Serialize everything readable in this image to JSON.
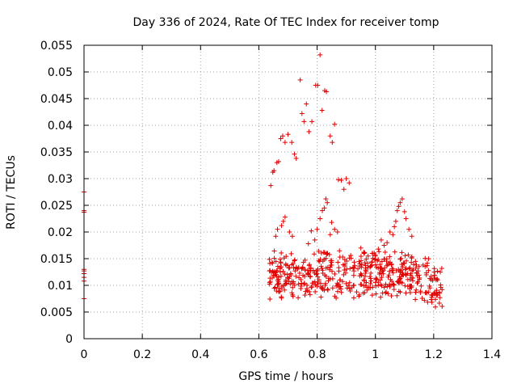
{
  "chart_data": {
    "type": "scatter",
    "title": "Day 336 of 2024, Rate Of TEC Index for receiver tomp",
    "xlabel": "GPS time / hours",
    "ylabel": "ROTI / TECUs",
    "xlim": [
      0,
      1.4
    ],
    "ylim": [
      0,
      0.055
    ],
    "x_ticks": [
      "0",
      "0.2",
      "0.4",
      "0.6",
      "0.8",
      "1",
      "1.2",
      "1.4"
    ],
    "y_ticks": [
      "0",
      "0.005",
      "0.01",
      "0.015",
      "0.02",
      "0.025",
      "0.03",
      "0.035",
      "0.04",
      "0.045",
      "0.05",
      "0.055"
    ],
    "grid": true,
    "marker": "+",
    "color": "#e00000",
    "series": [
      {
        "name": "ROTI",
        "points": [
          [
            0.0,
            0.0275
          ],
          [
            0.0,
            0.024
          ],
          [
            0.0,
            0.0237
          ],
          [
            0.0,
            0.013
          ],
          [
            0.0,
            0.0127
          ],
          [
            0.0,
            0.0122
          ],
          [
            0.0,
            0.0115
          ],
          [
            0.0,
            0.0108
          ],
          [
            0.0,
            0.0075
          ],
          [
            0.641,
            0.0287
          ],
          [
            0.648,
            0.0312
          ],
          [
            0.652,
            0.0315
          ],
          [
            0.662,
            0.033
          ],
          [
            0.668,
            0.0332
          ],
          [
            0.675,
            0.0375
          ],
          [
            0.682,
            0.038
          ],
          [
            0.69,
            0.0368
          ],
          [
            0.7,
            0.0383
          ],
          [
            0.713,
            0.0368
          ],
          [
            0.722,
            0.0346
          ],
          [
            0.728,
            0.0338
          ],
          [
            0.742,
            0.0485
          ],
          [
            0.748,
            0.0422
          ],
          [
            0.755,
            0.0407
          ],
          [
            0.763,
            0.044
          ],
          [
            0.772,
            0.0388
          ],
          [
            0.782,
            0.0407
          ],
          [
            0.795,
            0.0475
          ],
          [
            0.802,
            0.0475
          ],
          [
            0.81,
            0.0532
          ],
          [
            0.817,
            0.0428
          ],
          [
            0.826,
            0.0465
          ],
          [
            0.832,
            0.0463
          ],
          [
            0.845,
            0.038
          ],
          [
            0.852,
            0.0368
          ],
          [
            0.86,
            0.0402
          ],
          [
            0.873,
            0.0298
          ],
          [
            0.883,
            0.0297
          ],
          [
            0.892,
            0.028
          ],
          [
            0.9,
            0.03
          ],
          [
            0.91,
            0.0292
          ],
          [
            0.818,
            0.024
          ],
          [
            0.825,
            0.0245
          ],
          [
            0.83,
            0.0262
          ],
          [
            0.835,
            0.0255
          ],
          [
            0.81,
            0.0225
          ],
          [
            0.8,
            0.0205
          ],
          [
            0.85,
            0.0218
          ],
          [
            0.86,
            0.0205
          ],
          [
            0.845,
            0.0195
          ],
          [
            0.87,
            0.02
          ],
          [
            0.78,
            0.0202
          ],
          [
            0.792,
            0.0185
          ],
          [
            0.77,
            0.0178
          ],
          [
            0.705,
            0.02
          ],
          [
            0.715,
            0.0192
          ],
          [
            0.69,
            0.0228
          ],
          [
            0.684,
            0.022
          ],
          [
            0.678,
            0.0212
          ],
          [
            0.664,
            0.0205
          ],
          [
            0.658,
            0.0192
          ],
          [
            1.085,
            0.0255
          ],
          [
            1.092,
            0.0262
          ],
          [
            1.08,
            0.0248
          ],
          [
            1.075,
            0.024
          ],
          [
            1.1,
            0.0238
          ],
          [
            1.07,
            0.022
          ],
          [
            1.065,
            0.021
          ],
          [
            1.05,
            0.02
          ],
          [
            1.06,
            0.0195
          ],
          [
            1.105,
            0.0225
          ],
          [
            1.115,
            0.0205
          ],
          [
            1.125,
            0.0192
          ],
          [
            1.04,
            0.018
          ],
          [
            1.03,
            0.0175
          ],
          [
            1.02,
            0.0185
          ],
          [
            0.99,
            0.016
          ],
          [
            1.0,
            0.0155
          ],
          [
            1.01,
            0.0168
          ],
          [
            0.96,
            0.0162
          ],
          [
            0.975,
            0.0155
          ],
          [
            0.95,
            0.017
          ]
        ]
      }
    ]
  }
}
